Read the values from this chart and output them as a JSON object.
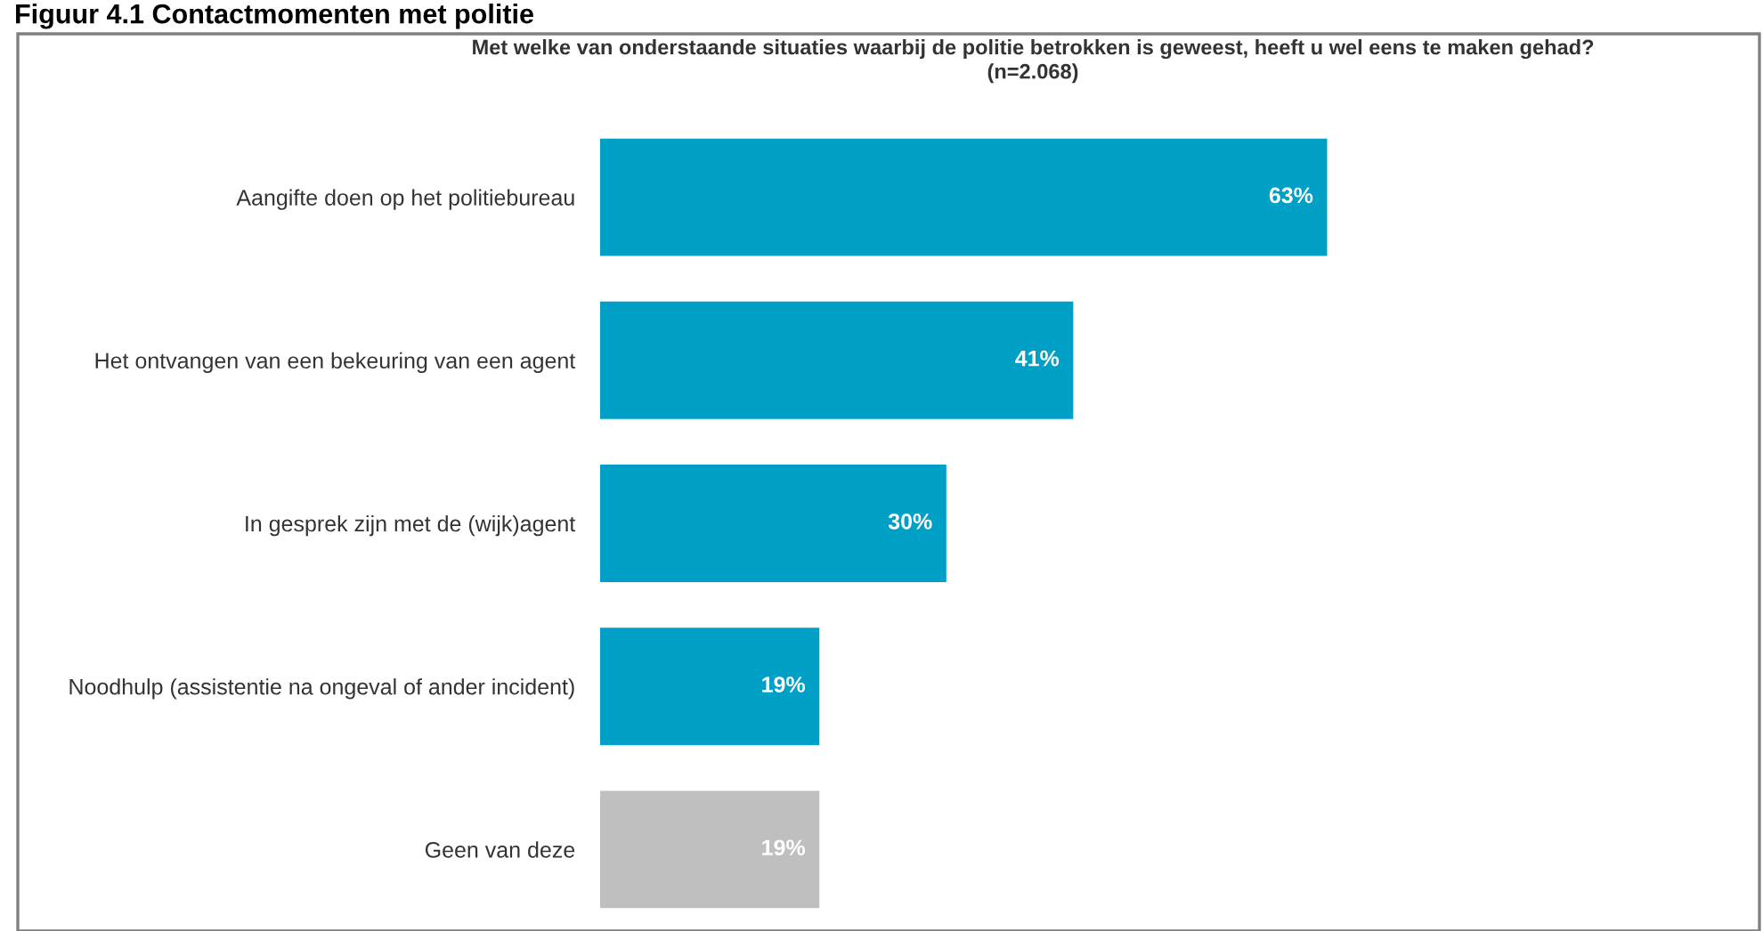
{
  "chart_data": {
    "type": "bar",
    "orientation": "horizontal",
    "title": "Met welke van onderstaande situaties waarbij de politie betrokken is geweest, heeft u wel eens te maken gehad?\n(n=2.068)",
    "annotations": [
      "Figuur 4.1 Contactmomenten met politie"
    ],
    "categories": [
      "Aangifte doen op het politiebureau",
      "Het ontvangen van een bekeuring van een agent",
      "In gesprek zijn met de (wijk)agent",
      "Noodhulp (assistentie na ongeval of ander incident)",
      "Geen van deze"
    ],
    "values": [
      63,
      41,
      30,
      19,
      19
    ],
    "colors": [
      "#00a0c6",
      "#00a0c6",
      "#00a0c6",
      "#00a0c6",
      "#bfbfbf"
    ],
    "value_labels": [
      "63%",
      "41%",
      "30%",
      "19%",
      "19%"
    ],
    "xlim": [
      0,
      100
    ],
    "tick_labels": "y",
    "grid": false,
    "legend": false
  }
}
